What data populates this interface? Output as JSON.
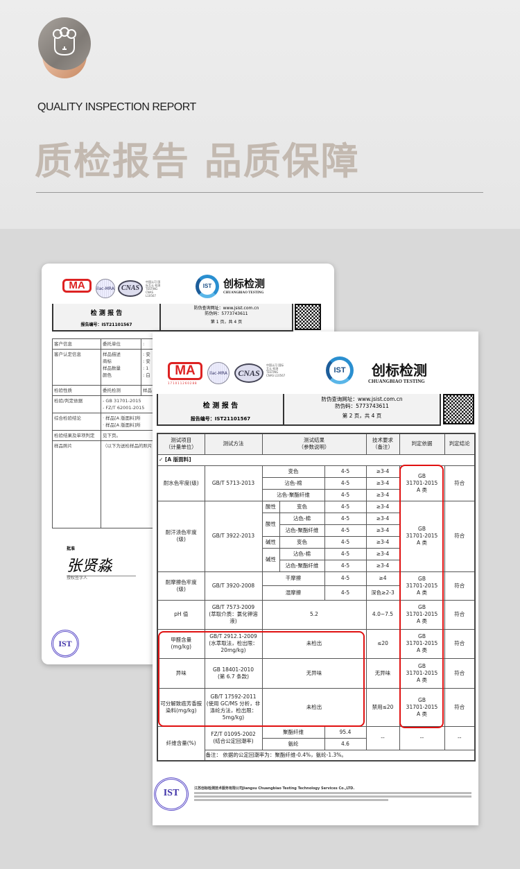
{
  "header": {
    "eng_title": "QUALITY INSPECTION REPORT",
    "cn_title": "质检报告 品质保障",
    "logo_icon": "sheep-face-icon",
    "title_color": "#c3b9b0"
  },
  "cert": {
    "cma": "MA",
    "cma_no": "171011260288",
    "ilac": "ilac-MRA",
    "cnas": "CNAS",
    "cnas_text": "中国认可 国际互认 检测 TESTING CNAS L10567",
    "ist": "IST",
    "cn_name": "创标检测",
    "en_name": "CHUANGBIAO TESTING"
  },
  "report": {
    "title": "检 测 报 告",
    "number": "报告编号：IST21101567",
    "url": "防伪查询网址：www.jsist.com.cn",
    "code": "防伪码：5773743611",
    "page_back": "第 1 页，共 4 页",
    "page_front": "第 2 页，共 4 页"
  },
  "back_table": {
    "rows": [
      {
        "label": "客户信息",
        "field": "委托单位",
        "value": ":"
      },
      {
        "label": "客户认定信息",
        "field": "样品描述\n商标\n样品数量\n颜色",
        "value": ": 安\n: 安\n: 1\n: 白"
      },
      {
        "label": "检验性质",
        "field": "委托检测",
        "value": "样品"
      },
      {
        "label": "检验/判定依据",
        "field": "- GB 31701-2015\n- FZ/T 62001-2015",
        "value": ""
      },
      {
        "label": "综合检验结论",
        "field": "· 样品[A 版面料]所\n· 样品[A 版面料]所",
        "value": ""
      },
      {
        "label": "检验结果及单项判定",
        "field": "见下页。",
        "value": ""
      },
      {
        "label": "样品照片",
        "field": "（以下为送检样品的照片）",
        "value": ""
      }
    ],
    "approve": "批准",
    "signature": "张贤淼",
    "signer": "授权签字人"
  },
  "front_table": {
    "headers": [
      "测试项目\n（计量单位）",
      "测试方法",
      "测试结果\n（参数说明）",
      "技术要求\n（备注）",
      "判定依据",
      "判定结论"
    ],
    "section": "✓  [A 版面料]",
    "basis": "GB\n31701-2015\nA 类",
    "pass": "符合",
    "water": {
      "item": "耐水色牢度(级)",
      "method": "GB/T 5713-2013",
      "rows": [
        [
          "变色",
          "4-5",
          "≥3-4"
        ],
        [
          "沾色-棉",
          "4-5",
          "≥3-4"
        ],
        [
          "沾色-聚酯纤维",
          "4-5",
          "≥3-4"
        ]
      ]
    },
    "sweat": {
      "item": "耐汗渍色牢度\n(级)",
      "method": "GB/T 3922-2013",
      "acid": "酸性",
      "alkali": "碱性",
      "rows": [
        [
          "变色",
          "4-5",
          "≥3-4"
        ],
        [
          "沾色-棉",
          "4-5",
          "≥3-4"
        ],
        [
          "沾色-聚酯纤维",
          "4-5",
          "≥3-4"
        ],
        [
          "变色",
          "4-5",
          "≥3-4"
        ],
        [
          "沾色-棉",
          "4-5",
          "≥3-4"
        ],
        [
          "沾色-聚酯纤维",
          "4-5",
          "≥3-4"
        ]
      ]
    },
    "rub": {
      "item": "耐摩擦色牢度\n(级)",
      "method": "GB/T 3920-2008",
      "rows": [
        [
          "干摩擦",
          "4-5",
          "≥4"
        ],
        [
          "湿摩擦",
          "4-5",
          "深色≥2-3"
        ]
      ]
    },
    "ph": {
      "item": "pH 值",
      "method": "GB/T 7573-2009\n(萃取介质：氯化钾溶液)",
      "result": "5.2",
      "req": "4.0~7.5"
    },
    "formaldehyde": {
      "item": "甲醛含量\n(mg/kg)",
      "method": "GB/T 2912.1-2009\n(水萃取法，检出限：20mg/kg)",
      "result": "未检出",
      "req": "≤20"
    },
    "odor": {
      "item": "异味",
      "method": "GB 18401-2010\n(第 6.7 条款)",
      "result": "无异味",
      "req": "无异味"
    },
    "amine": {
      "item": "可分解致癌芳香胺染料(mg/kg)",
      "method": "GB/T 17592-2011\n(使用 GC/MS 分析，非涤纶方法，检出限：5mg/kg)",
      "result": "未检出",
      "req": "禁用≤20"
    },
    "fiber": {
      "item": "纤维含量(%)",
      "method": "FZ/T 01095-2002\n(结合公定回潮率)",
      "rows": [
        [
          "聚酯纤维",
          "95.4"
        ],
        [
          "氨纶",
          "4.6"
        ]
      ],
      "dash": "--"
    },
    "note": "备注：  依据的公定回潮率为：聚酯纤维-0.4%，氨纶-1.3%。"
  },
  "footer": {
    "stamp": "IST",
    "company": "江苏创标检测技术服务有限公司Jiangsu Chuangbiao Testing Technology Services Co.,LTD."
  },
  "colors": {
    "highlight": "#e01010",
    "ist_blue": "#2a8fd0",
    "stamp_purple": "#5b4cc8"
  }
}
